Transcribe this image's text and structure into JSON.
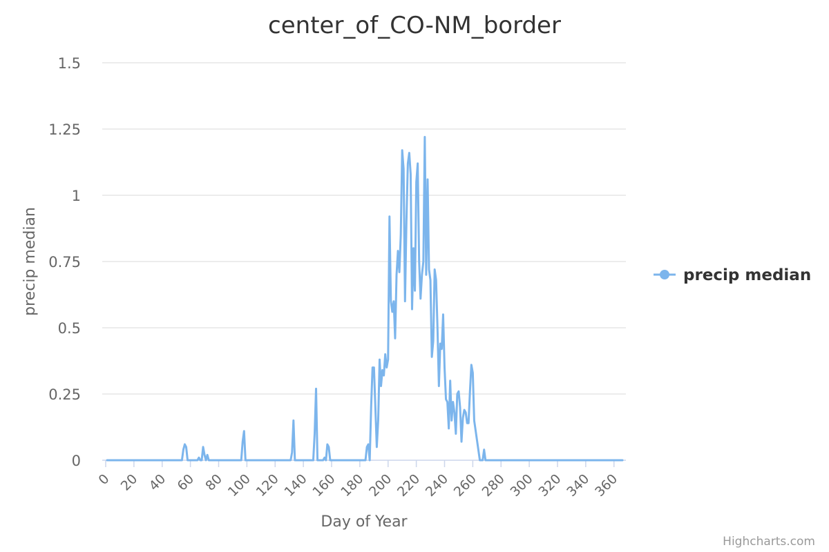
{
  "chart_data": {
    "type": "line",
    "title": "center_of_CO-NM_border",
    "xlabel": "Day of Year",
    "ylabel": "precip median",
    "xlim": [
      0,
      366
    ],
    "ylim": [
      0,
      1.5
    ],
    "x_ticks": [
      0,
      20,
      40,
      60,
      80,
      100,
      120,
      140,
      160,
      180,
      200,
      220,
      240,
      260,
      280,
      300,
      320,
      340,
      360
    ],
    "y_ticks": [
      0,
      0.25,
      0.5,
      0.75,
      1,
      1.25,
      1.5
    ],
    "y_tick_labels": [
      "0",
      "0.25",
      "0.5",
      "0.75",
      "1",
      "1.25",
      "1.5"
    ],
    "grid": true,
    "legend_position": "right",
    "series": [
      {
        "name": "precip median",
        "color": "#7cb5ec",
        "points": [
          [
            1,
            0
          ],
          [
            54,
            0
          ],
          [
            55,
            0.04
          ],
          [
            56,
            0.06
          ],
          [
            57,
            0.05
          ],
          [
            58,
            0
          ],
          [
            65,
            0
          ],
          [
            66,
            0.01
          ],
          [
            67,
            0
          ],
          [
            68,
            0
          ],
          [
            69,
            0.05
          ],
          [
            70,
            0.02
          ],
          [
            71,
            0
          ],
          [
            72,
            0.02
          ],
          [
            73,
            0
          ],
          [
            96,
            0
          ],
          [
            97,
            0.07
          ],
          [
            98,
            0.11
          ],
          [
            99,
            0
          ],
          [
            131,
            0
          ],
          [
            132,
            0.03
          ],
          [
            133,
            0.15
          ],
          [
            134,
            0
          ],
          [
            147,
            0
          ],
          [
            148,
            0.1
          ],
          [
            149,
            0.27
          ],
          [
            150,
            0
          ],
          [
            154,
            0
          ],
          [
            155,
            0.01
          ],
          [
            156,
            0
          ],
          [
            157,
            0.06
          ],
          [
            158,
            0.05
          ],
          [
            159,
            0
          ],
          [
            184,
            0
          ],
          [
            185,
            0.05
          ],
          [
            186,
            0.06
          ],
          [
            187,
            0
          ],
          [
            188,
            0.2
          ],
          [
            189,
            0.35
          ],
          [
            190,
            0.35
          ],
          [
            191,
            0.2
          ],
          [
            192,
            0.05
          ],
          [
            193,
            0.15
          ],
          [
            194,
            0.38
          ],
          [
            195,
            0.28
          ],
          [
            196,
            0.34
          ],
          [
            197,
            0.32
          ],
          [
            198,
            0.4
          ],
          [
            199,
            0.35
          ],
          [
            200,
            0.38
          ],
          [
            201,
            0.92
          ],
          [
            202,
            0.6
          ],
          [
            203,
            0.56
          ],
          [
            204,
            0.6
          ],
          [
            205,
            0.46
          ],
          [
            206,
            0.7
          ],
          [
            207,
            0.79
          ],
          [
            208,
            0.71
          ],
          [
            209,
            0.85
          ],
          [
            210,
            1.17
          ],
          [
            211,
            1.1
          ],
          [
            212,
            0.6
          ],
          [
            213,
            0.9
          ],
          [
            214,
            1.12
          ],
          [
            215,
            1.16
          ],
          [
            216,
            1.08
          ],
          [
            217,
            0.57
          ],
          [
            218,
            0.8
          ],
          [
            219,
            0.64
          ],
          [
            220,
            1.05
          ],
          [
            221,
            1.12
          ],
          [
            222,
            0.75
          ],
          [
            223,
            0.61
          ],
          [
            224,
            0.7
          ],
          [
            225,
            0.75
          ],
          [
            226,
            1.22
          ],
          [
            227,
            0.7
          ],
          [
            228,
            1.06
          ],
          [
            229,
            0.72
          ],
          [
            230,
            0.68
          ],
          [
            231,
            0.39
          ],
          [
            232,
            0.45
          ],
          [
            233,
            0.72
          ],
          [
            234,
            0.68
          ],
          [
            235,
            0.5
          ],
          [
            236,
            0.28
          ],
          [
            237,
            0.44
          ],
          [
            238,
            0.42
          ],
          [
            239,
            0.55
          ],
          [
            240,
            0.35
          ],
          [
            241,
            0.23
          ],
          [
            242,
            0.22
          ],
          [
            243,
            0.12
          ],
          [
            244,
            0.3
          ],
          [
            245,
            0.15
          ],
          [
            246,
            0.22
          ],
          [
            247,
            0.18
          ],
          [
            248,
            0.1
          ],
          [
            249,
            0.25
          ],
          [
            250,
            0.26
          ],
          [
            251,
            0.2
          ],
          [
            252,
            0.07
          ],
          [
            253,
            0.16
          ],
          [
            254,
            0.19
          ],
          [
            255,
            0.18
          ],
          [
            256,
            0.14
          ],
          [
            257,
            0.14
          ],
          [
            258,
            0.26
          ],
          [
            259,
            0.36
          ],
          [
            260,
            0.33
          ],
          [
            261,
            0.15
          ],
          [
            265,
            0
          ],
          [
            267,
            0
          ],
          [
            268,
            0.04
          ],
          [
            269,
            0
          ],
          [
            366,
            0
          ]
        ]
      }
    ]
  },
  "credits": "Highcharts.com"
}
